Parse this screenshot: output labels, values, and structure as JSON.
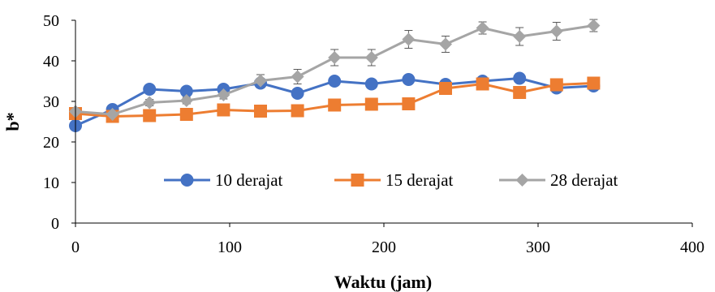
{
  "chart_data": {
    "type": "line",
    "xlabel": "Waktu (jam)",
    "ylabel": "b*",
    "xlim": [
      0,
      400
    ],
    "ylim": [
      0,
      50
    ],
    "x_ticks": [
      0,
      100,
      200,
      300,
      400
    ],
    "y_ticks": [
      0,
      10,
      20,
      30,
      40,
      50
    ],
    "grid": false,
    "legend": "inside-lower",
    "x": [
      0,
      24,
      48,
      72,
      96,
      120,
      144,
      168,
      192,
      216,
      240,
      264,
      288,
      312,
      336
    ],
    "series": [
      {
        "name": "10 derajat",
        "color": "#4472C4",
        "marker": "circle",
        "values": [
          24,
          28,
          33,
          32.5,
          33,
          34.5,
          32,
          35,
          34.3,
          35.4,
          34.2,
          35,
          35.7,
          33.3,
          33.8
        ],
        "errors": [
          0.6,
          0.6,
          0.8,
          0.6,
          0.8,
          1.2,
          0.8,
          1.0,
          0.8,
          1.0,
          0.8,
          0.8,
          0.8,
          1.0,
          0.8
        ]
      },
      {
        "name": "15 derajat",
        "color": "#ED7D31",
        "marker": "square",
        "values": [
          27,
          26.3,
          26.5,
          26.8,
          27.9,
          27.6,
          27.7,
          29.1,
          29.3,
          29.4,
          33.2,
          34.3,
          32.2,
          34.1,
          34.5
        ],
        "errors": [
          0.5,
          0.5,
          0.5,
          0.5,
          0.6,
          0.5,
          0.5,
          0.6,
          0.6,
          0.6,
          0.8,
          0.8,
          0.8,
          0.8,
          0.8
        ]
      },
      {
        "name": "28 derajat",
        "color": "#A5A5A5",
        "marker": "diamond",
        "values": [
          27.5,
          26.8,
          29.7,
          30.2,
          31.6,
          35.1,
          36.1,
          40.8,
          40.8,
          45.3,
          44.1,
          48.1,
          46,
          47.3,
          48.7
        ],
        "errors": [
          0.5,
          0.5,
          0.8,
          0.8,
          1.0,
          1.5,
          1.8,
          2.0,
          2.0,
          2.2,
          2.0,
          1.5,
          2.2,
          2.2,
          1.5
        ]
      }
    ]
  }
}
